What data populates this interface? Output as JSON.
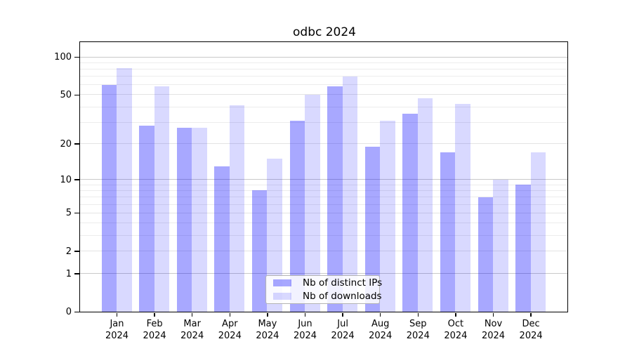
{
  "chart_data": {
    "type": "bar",
    "title": "odbc 2024",
    "categories": [
      "Jan",
      "Feb",
      "Mar",
      "Apr",
      "May",
      "Jun",
      "Jul",
      "Aug",
      "Sep",
      "Oct",
      "Nov",
      "Dec"
    ],
    "category_year": "2024",
    "series": [
      {
        "name": "Nb of distinct IPs",
        "color": "rgba(0,0,255,0.34)",
        "values": [
          60,
          28,
          27,
          13,
          8,
          31,
          58,
          19,
          35,
          17,
          7,
          9
        ]
      },
      {
        "name": "Nb of downloads",
        "color": "rgba(0,0,255,0.15)",
        "values": [
          82,
          58,
          27,
          41,
          15,
          50,
          70,
          31,
          47,
          42,
          10,
          17
        ]
      }
    ],
    "scale": "log1p",
    "ylim": [
      0,
      135
    ],
    "y_ticks": [
      {
        "value": 0,
        "label": "0"
      },
      {
        "value": 1,
        "label": "1"
      },
      {
        "value": 2,
        "label": "2"
      },
      {
        "value": 5,
        "label": "5"
      },
      {
        "value": 10,
        "label": "10"
      },
      {
        "value": 20,
        "label": "20"
      },
      {
        "value": 50,
        "label": "50"
      },
      {
        "value": 100,
        "label": "100"
      }
    ],
    "gridlines": {
      "major": [
        1,
        10,
        100
      ],
      "labeled_minor": [
        2,
        5,
        20,
        50
      ],
      "minor": [
        3,
        4,
        6,
        7,
        8,
        9,
        30,
        40,
        60,
        70,
        80,
        90
      ]
    },
    "grid_colors": {
      "major": "#c9c9c9",
      "labeled_minor": "#e4e4e4",
      "minor": "#ececec"
    },
    "legend_position": "bottom-center",
    "xlabel": "",
    "ylabel": ""
  }
}
